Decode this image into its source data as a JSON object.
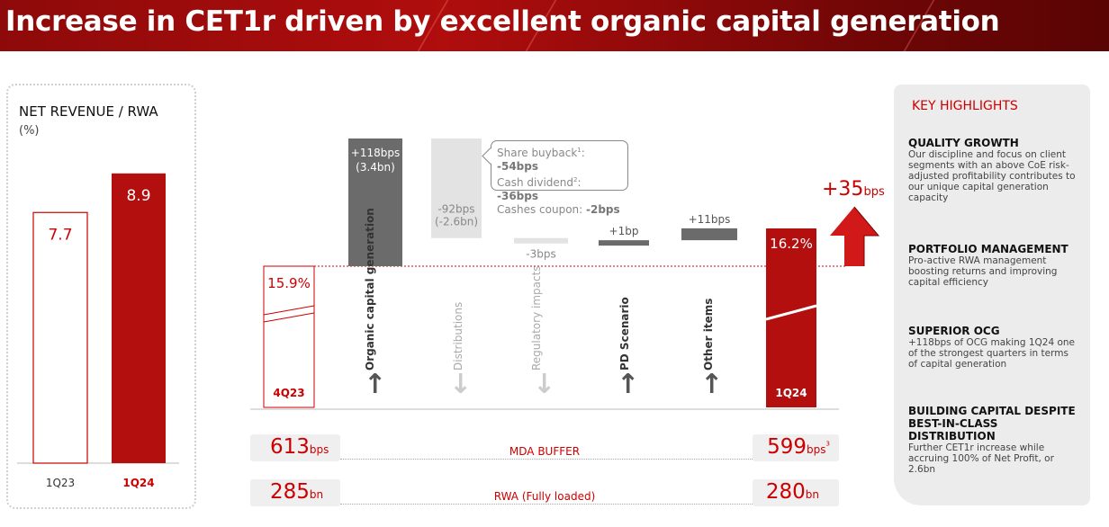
{
  "title": "Increase in CET1r driven by excellent organic capital generation",
  "colors": {
    "accent": "#c00000",
    "dark_red": "#b30f0f",
    "grey_dark": "#6b6b6b",
    "grey_light": "#e3e3e3"
  },
  "chart_data": [
    {
      "type": "bar",
      "title": "NET REVENUE / RWA",
      "unit": "(%)",
      "categories": [
        "1Q23",
        "1Q24"
      ],
      "values": [
        7.7,
        8.9
      ],
      "value_labels": [
        "7.7",
        "8.9"
      ],
      "ylim": [
        0,
        10
      ],
      "styles": [
        "outline",
        "filled"
      ]
    },
    {
      "type": "bar",
      "subtype": "waterfall",
      "unit": "%",
      "start": {
        "label": "4Q23",
        "value": 15.9,
        "value_label": "15.9%"
      },
      "end": {
        "label": "1Q24",
        "value": 16.2,
        "value_label": "16.2%"
      },
      "steps": [
        {
          "label": "Organic capital generation",
          "delta_bps": 118,
          "value_label": "+118bps",
          "sub_label": "(3.4bn)",
          "direction": "up"
        },
        {
          "label": "Distributions",
          "delta_bps": -92,
          "value_label": "-92bps",
          "sub_label": "(-2.6bn)",
          "direction": "down"
        },
        {
          "label": "Regulatory impacts",
          "delta_bps": -3,
          "value_label": "-3bps",
          "sub_label": "",
          "direction": "down"
        },
        {
          "label": "PD Scenario",
          "delta_bps": 1,
          "value_label": "+1bp",
          "sub_label": "",
          "direction": "up"
        },
        {
          "label": "Other items",
          "delta_bps": 11,
          "value_label": "+11bps",
          "sub_label": "",
          "direction": "up"
        }
      ],
      "total_change": {
        "value": "+35",
        "unit": "bps"
      },
      "distribution_breakdown": [
        {
          "label": "Share buyback",
          "sup": "1",
          "value": "-54bps"
        },
        {
          "label": "Cash dividend",
          "sup": "2",
          "value": "-36bps"
        },
        {
          "label": "Cashes coupon",
          "sup": "",
          "value": "-2bps"
        }
      ]
    }
  ],
  "footer_rows": [
    {
      "label": "MDA BUFFER",
      "left_value": "613",
      "left_unit": "bps",
      "left_sup": "",
      "right_value": "599",
      "right_unit": "bps",
      "right_sup": "3"
    },
    {
      "label": "RWA (Fully loaded)",
      "left_value": "285",
      "left_unit": "bn",
      "left_sup": "",
      "right_value": "280",
      "right_unit": "bn",
      "right_sup": ""
    }
  ],
  "highlights": {
    "heading": "KEY HIGHLIGHTS",
    "items": [
      {
        "title": "QUALITY GROWTH",
        "text": "Our discipline and focus on client segments with an above CoE risk-adjusted profitability contributes to our unique capital generation capacity"
      },
      {
        "title": "PORTFOLIO MANAGEMENT",
        "text": "Pro-active RWA management boosting returns and improving capital efficiency"
      },
      {
        "title": "SUPERIOR OCG",
        "text": "+118bps of OCG making 1Q24 one of the strongest quarters in terms of capital generation"
      },
      {
        "title": "BUILDING CAPITAL DESPITE BEST-IN-CLASS DISTRIBUTION",
        "text": "Further CET1r increase while accruing 100% of Net Profit, or 2.6bn"
      }
    ]
  }
}
